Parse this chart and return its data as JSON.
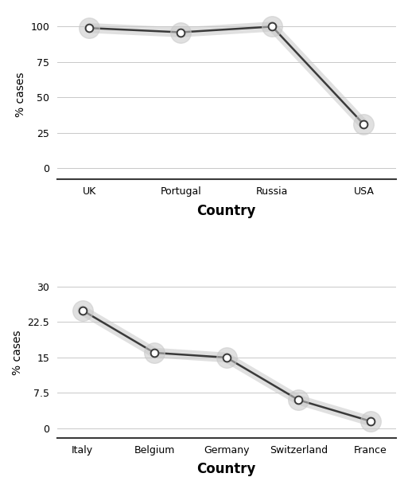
{
  "chart1": {
    "categories": [
      "UK",
      "Portugal",
      "Russia",
      "USA"
    ],
    "values": [
      99,
      96,
      100,
      31
    ],
    "yticks": [
      0,
      25,
      50,
      75,
      100
    ],
    "ylim": [
      -8,
      112
    ],
    "ylabel": "% cases",
    "xlabel": "Country"
  },
  "chart2": {
    "categories": [
      "Italy",
      "Belgium",
      "Germany",
      "Switzerland",
      "France"
    ],
    "values": [
      25,
      16,
      15,
      6,
      1.5
    ],
    "yticks": [
      0,
      7.5,
      15,
      22.5,
      30
    ],
    "ylim": [
      -2,
      34
    ],
    "ylabel": "% cases",
    "xlabel": "Country"
  },
  "line_color": "#3a3a3a",
  "marker_color": "#ffffff",
  "marker_edge_color": "#3a3a3a",
  "glow_color": "#c8c8c8",
  "background_color": "#ffffff",
  "line_width": 1.8,
  "marker_size": 7,
  "glow_alpha": 0.55,
  "glow_linewidth": 9,
  "tick_fontsize": 9,
  "ylabel_fontsize": 10,
  "xlabel_fontsize": 12,
  "xlabel_fontweight": "bold"
}
